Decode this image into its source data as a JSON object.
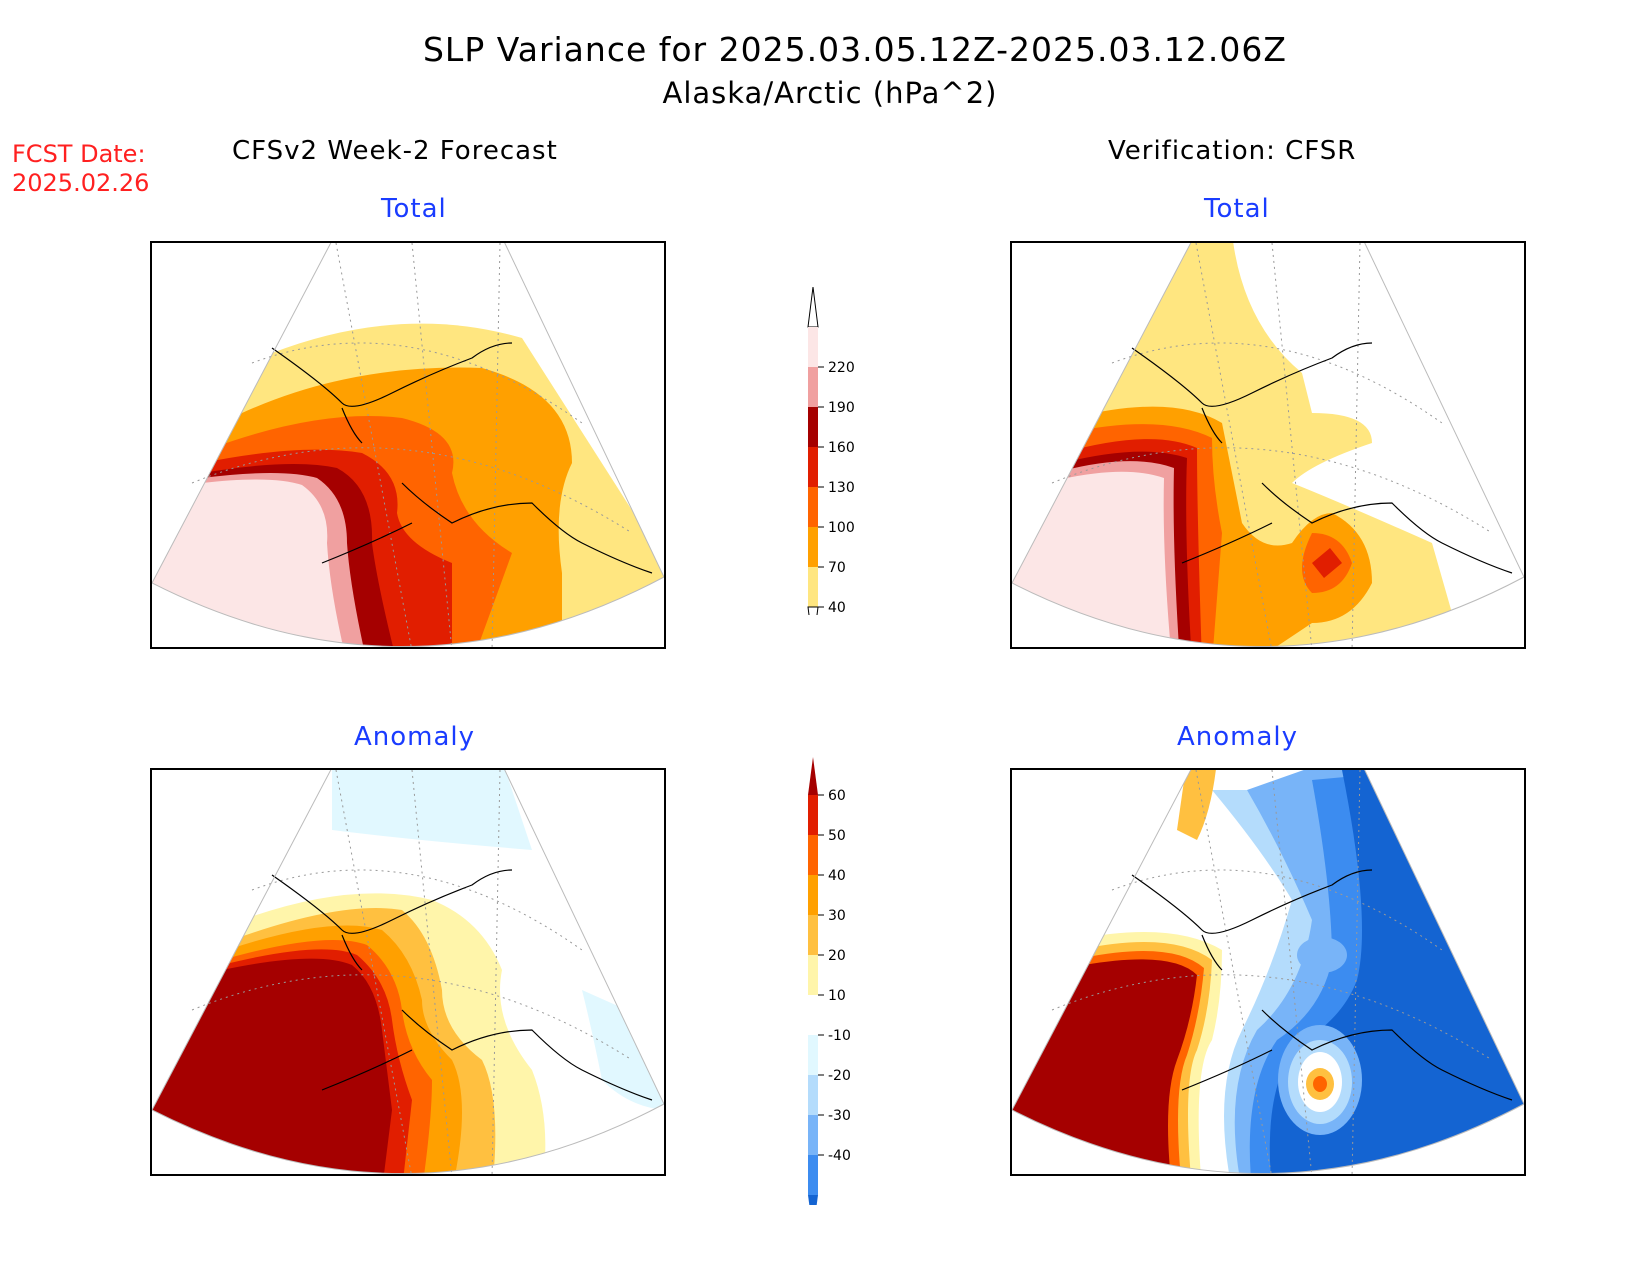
{
  "title": "SLP Variance for 2025.03.05.12Z-2025.03.12.06Z",
  "subtitle": "Alaska/Arctic (hPa^2)",
  "fcst_label": "FCST Date:",
  "fcst_date": "2025.02.26",
  "left_column_title": "CFSv2 Week-2 Forecast",
  "right_column_title": "Verification: CFSR",
  "panels": {
    "forecast_total": {
      "label": "Total"
    },
    "verification_total": {
      "label": "Total"
    },
    "forecast_anomaly": {
      "label": "Anomaly"
    },
    "verification_anomaly": {
      "label": "Anomaly"
    }
  },
  "total_colorbar": {
    "levels": [
      "40",
      "70",
      "100",
      "130",
      "160",
      "190",
      "220"
    ],
    "colors": [
      "#ffe680",
      "#ffa000",
      "#ff6400",
      "#e11e00",
      "#a50000",
      "#f0a0a0",
      "#fce6e6"
    ]
  },
  "anomaly_colorbar": {
    "levels": [
      "-40",
      "-30",
      "-20",
      "-10",
      "10",
      "20",
      "30",
      "40",
      "50",
      "60"
    ],
    "colors": [
      "#1464d2",
      "#3c8cf0",
      "#78b4f8",
      "#b4dcfc",
      "#e1f8ff",
      "#ffffff",
      "#fff5aa",
      "#ffc040",
      "#ffa000",
      "#ff6400",
      "#e11e00",
      "#a50000"
    ]
  },
  "colors": {
    "title_text": "#000000",
    "fcst_text": "#ff2020",
    "panel_label_text": "#1a3cff"
  }
}
